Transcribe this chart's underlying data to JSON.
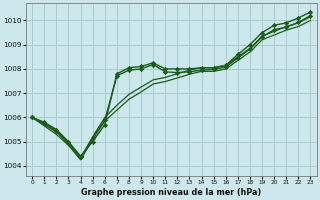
{
  "title": "Graphe pression niveau de la mer (hPa)",
  "bg_color": "#cce8ec",
  "grid_color": "#aacccc",
  "line_color": "#1a5c1a",
  "marker_color": "#1a5c1a",
  "xlim": [
    -0.5,
    23.5
  ],
  "ylim": [
    1003.6,
    1010.7
  ],
  "yticks": [
    1004,
    1005,
    1006,
    1007,
    1008,
    1009,
    1010
  ],
  "xticks": [
    0,
    1,
    2,
    3,
    4,
    5,
    6,
    7,
    8,
    9,
    10,
    11,
    12,
    13,
    14,
    15,
    16,
    17,
    18,
    19,
    20,
    21,
    22,
    23
  ],
  "series": [
    {
      "x": [
        0,
        1,
        2,
        3,
        4,
        5,
        6,
        7,
        8,
        9,
        10,
        11,
        12,
        13,
        14,
        15,
        16,
        17,
        18,
        19,
        20,
        21,
        22,
        23
      ],
      "y": [
        1006.0,
        1005.8,
        1005.5,
        1005.0,
        1004.4,
        1005.0,
        1005.7,
        1007.8,
        1008.05,
        1008.1,
        1008.25,
        1008.0,
        1008.0,
        1008.0,
        1008.05,
        1008.05,
        1008.15,
        1008.6,
        1009.0,
        1009.5,
        1009.8,
        1009.9,
        1010.1,
        1010.35
      ],
      "has_markers": true,
      "lw": 1.0
    },
    {
      "x": [
        0,
        1,
        2,
        3,
        4,
        5,
        6,
        7,
        8,
        9,
        10,
        11,
        12,
        13,
        14,
        15,
        16,
        17,
        18,
        19,
        20,
        21,
        22,
        23
      ],
      "y": [
        1006.0,
        1005.7,
        1005.4,
        1004.9,
        1004.3,
        1005.2,
        1006.0,
        1006.5,
        1006.95,
        1007.25,
        1007.55,
        1007.65,
        1007.8,
        1007.95,
        1008.05,
        1008.05,
        1008.15,
        1008.5,
        1008.85,
        1009.35,
        1009.55,
        1009.75,
        1009.9,
        1010.15
      ],
      "has_markers": false,
      "lw": 0.9
    },
    {
      "x": [
        0,
        1,
        2,
        3,
        4,
        5,
        6,
        7,
        8,
        9,
        10,
        11,
        12,
        13,
        14,
        15,
        16,
        17,
        18,
        19,
        20,
        21,
        22,
        23
      ],
      "y": [
        1006.0,
        1005.65,
        1005.3,
        1004.85,
        1004.25,
        1005.1,
        1005.85,
        1006.3,
        1006.75,
        1007.05,
        1007.38,
        1007.48,
        1007.63,
        1007.78,
        1007.9,
        1007.9,
        1008.0,
        1008.35,
        1008.7,
        1009.2,
        1009.4,
        1009.6,
        1009.75,
        1010.0
      ],
      "has_markers": false,
      "lw": 0.9
    },
    {
      "x": [
        0,
        1,
        2,
        3,
        4,
        5,
        6,
        7,
        8,
        9,
        10,
        11,
        12,
        13,
        14,
        15,
        16,
        17,
        18,
        19,
        20,
        21,
        22,
        23
      ],
      "y": [
        1006.0,
        1005.75,
        1005.45,
        1004.95,
        1004.35,
        1005.15,
        1005.88,
        1007.72,
        1007.95,
        1008.0,
        1008.18,
        1007.88,
        1007.85,
        1007.88,
        1007.95,
        1007.98,
        1008.08,
        1008.45,
        1008.82,
        1009.32,
        1009.62,
        1009.72,
        1009.92,
        1010.2
      ],
      "has_markers": true,
      "lw": 1.0
    }
  ]
}
